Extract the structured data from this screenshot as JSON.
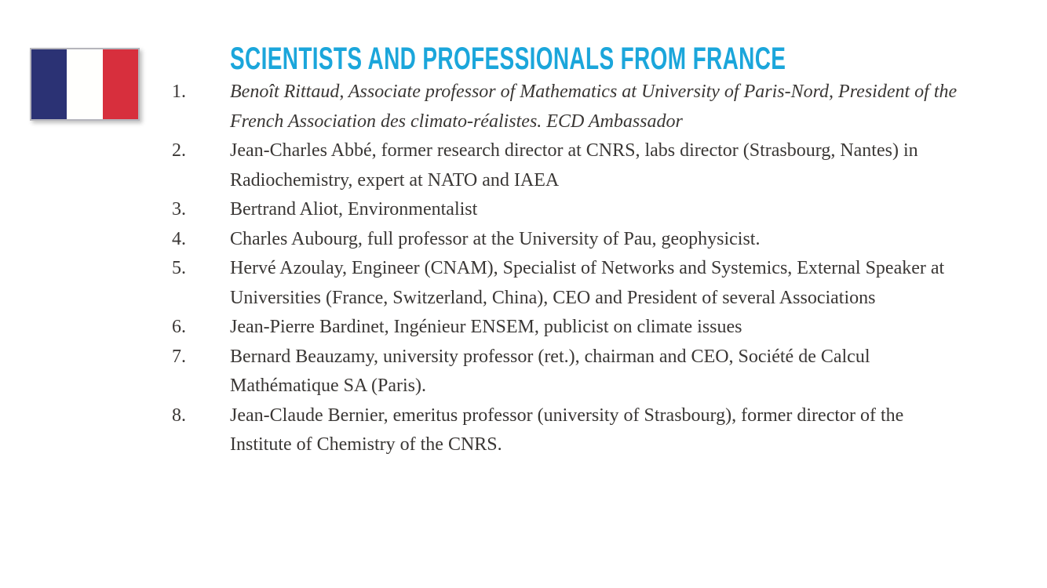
{
  "flag": {
    "label": "flag-of-france",
    "colors": {
      "blue": "#2b3274",
      "white": "#fffffd",
      "red": "#d72f3d",
      "border": "#b5b5bc"
    }
  },
  "heading": {
    "text": "SCIENTISTS AND PROFESSIONALS FROM FRANCE",
    "color": "#1ba6db"
  },
  "list": {
    "items": [
      {
        "number": "1.",
        "text": "Benoît Rittaud, Associate professor of Mathematics at University of Paris-Nord, President of the French Association des climato-réalistes. ECD Ambassador"
      },
      {
        "number": "2.",
        "text": "Jean-Charles Abbé, former research director at CNRS, labs director (Strasbourg, Nantes) in Radiochemistry, expert at NATO and IAEA"
      },
      {
        "number": "3.",
        "text": "Bertrand Aliot, Environmentalist"
      },
      {
        "number": "4.",
        "text": "Charles Aubourg, full professor at the University of Pau, geophysicist."
      },
      {
        "number": "5.",
        "text": "Hervé Azoulay, Engineer (CNAM), Specialist of Networks and Systemics, External Speaker at Universities (France, Switzerland, China), CEO and President of several Associations"
      },
      {
        "number": "6.",
        "text": "Jean-Pierre Bardinet, Ingénieur ENSEM, publicist on climate issues"
      },
      {
        "number": "7.",
        "text": "Bernard Beauzamy, university professor (ret.), chairman and CEO, Société de Calcul Mathématique SA (Paris)."
      },
      {
        "number": "8.",
        "text": "Jean-Claude Bernier, emeritus professor (university of Strasbourg), former director of the Institute of Chemistry of the CNRS."
      }
    ]
  }
}
